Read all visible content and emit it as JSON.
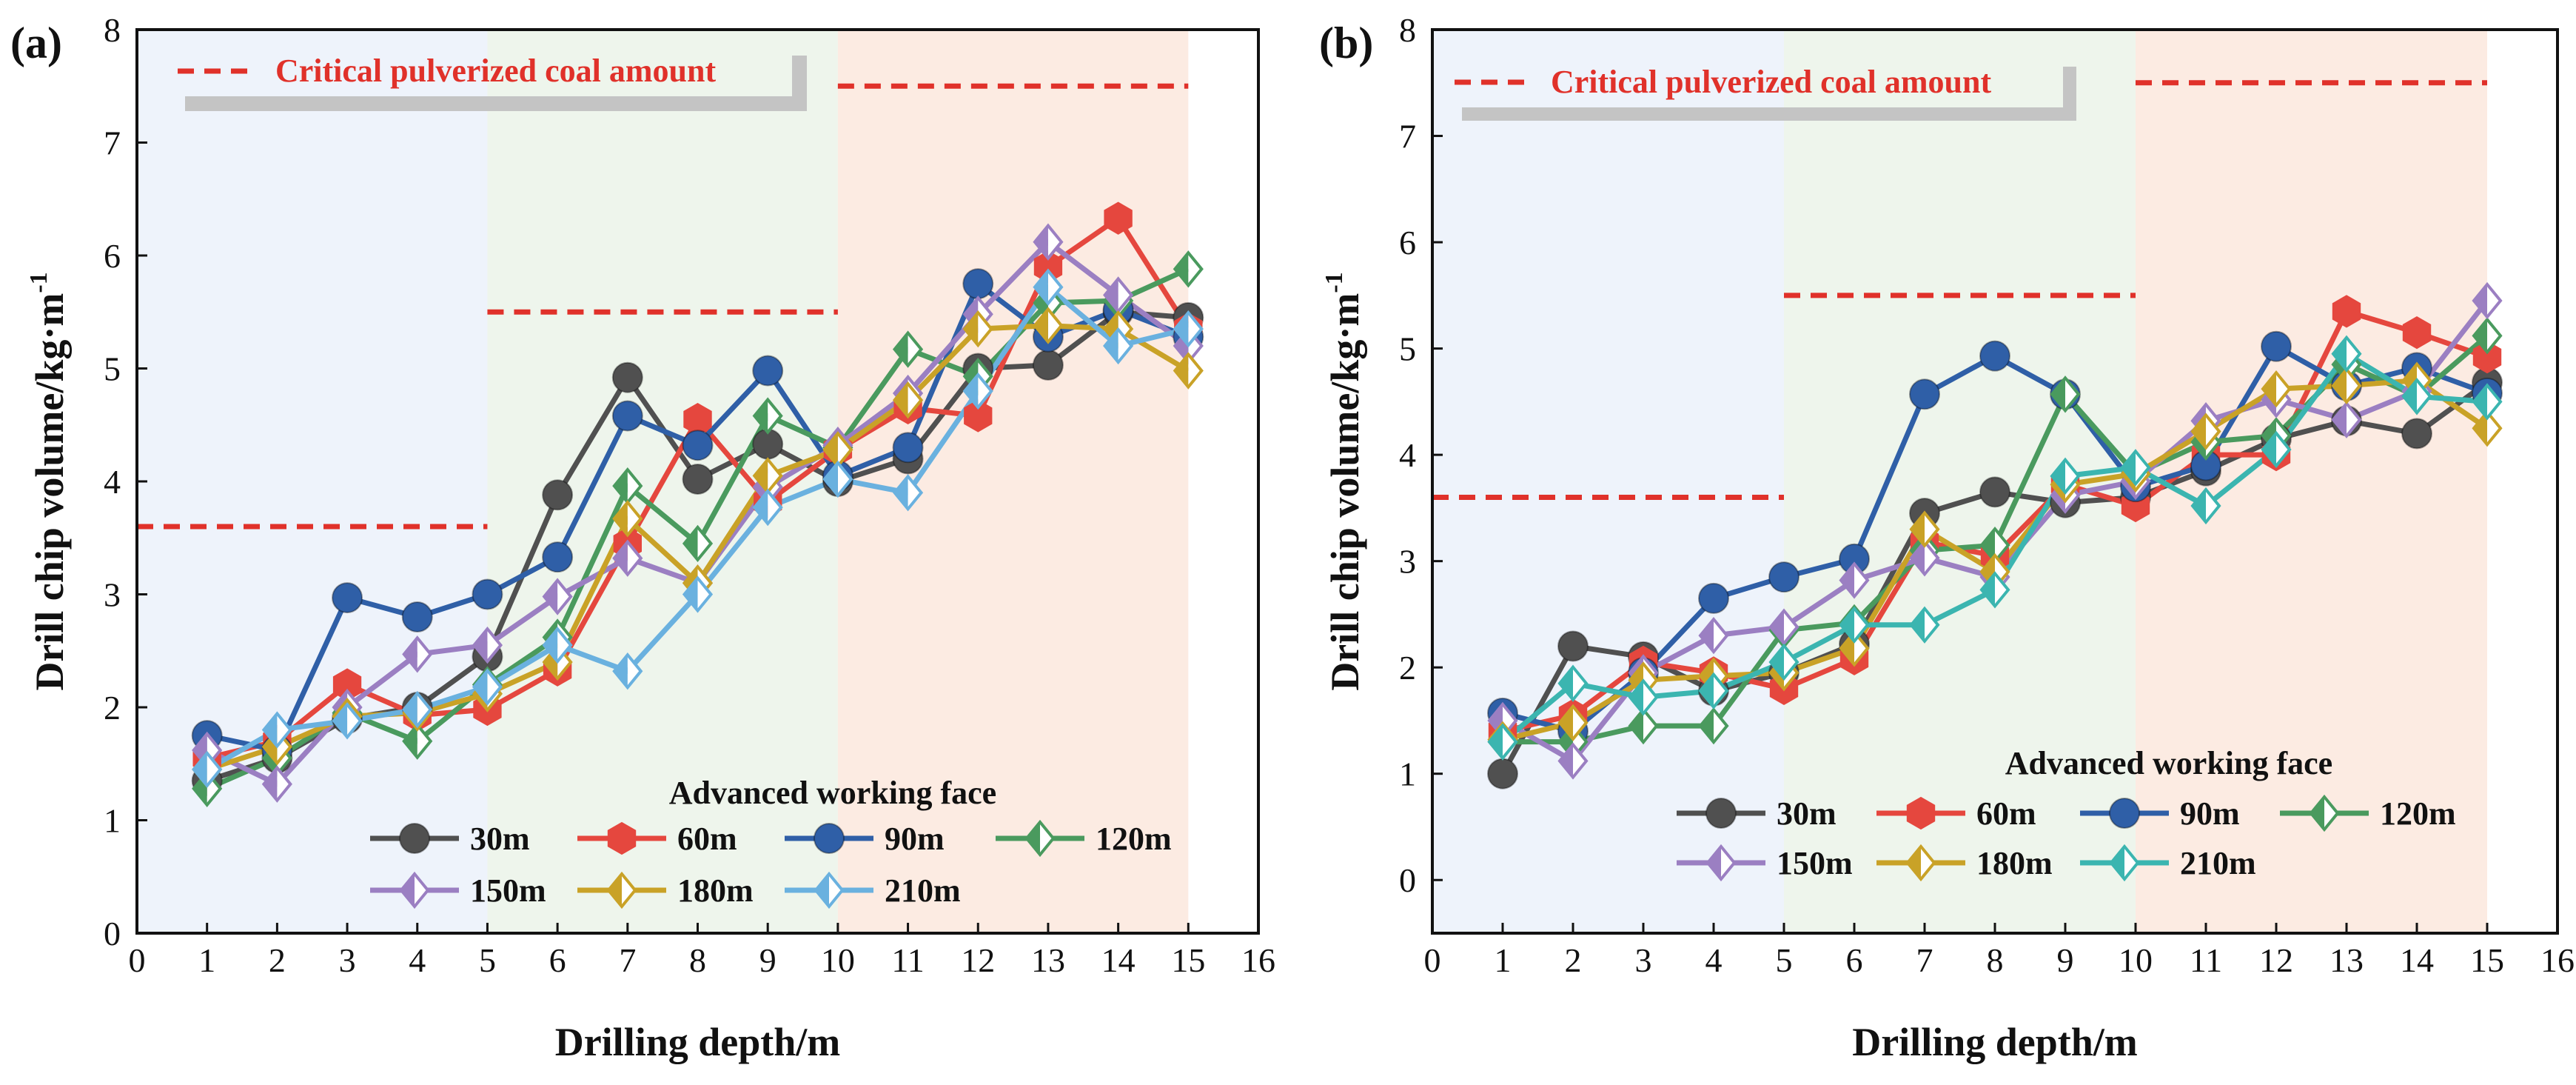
{
  "figure": {
    "panels": [
      {
        "label": "(a)"
      },
      {
        "label": "(b)"
      }
    ]
  },
  "chart_data": [
    {
      "type": "line",
      "panel": "(a)",
      "title": "",
      "xlabel": "Drilling depth/m",
      "ylabel_main": "Drill chip volume/kg·m",
      "ylabel_sup": "-1",
      "xlim": [
        0,
        16
      ],
      "ylim": [
        0,
        8
      ],
      "xticks": [
        "0",
        "1",
        "2",
        "3",
        "4",
        "5",
        "6",
        "7",
        "8",
        "9",
        "10",
        "11",
        "12",
        "13",
        "14",
        "15",
        "16"
      ],
      "yticks": [
        "0",
        "1",
        "2",
        "3",
        "4",
        "5",
        "6",
        "7",
        "8"
      ],
      "regions": [
        {
          "x0": 0,
          "x1": 5,
          "color": "#eef3fb"
        },
        {
          "x0": 5,
          "x1": 10,
          "color": "#eef5ec"
        },
        {
          "x0": 10,
          "x1": 15,
          "color": "#fcebe2"
        }
      ],
      "critical_lines": [
        {
          "x0": 0,
          "x1": 5,
          "y": 3.6
        },
        {
          "x0": 5,
          "x1": 10,
          "y": 5.5
        },
        {
          "x0": 10,
          "x1": 15,
          "y": 7.5
        }
      ],
      "critical_label": "Critical pulverized coal amount",
      "legend_title": "Advanced working face",
      "x": [
        1,
        2,
        3,
        4,
        5,
        6,
        7,
        8,
        9,
        10,
        11,
        12,
        13,
        14,
        15
      ],
      "series": [
        {
          "name": "30m",
          "color": "#505050",
          "marker": "circle",
          "values": [
            1.35,
            1.55,
            1.9,
            2.0,
            2.45,
            3.88,
            4.92,
            4.02,
            4.33,
            4.0,
            4.2,
            5.0,
            5.03,
            5.5,
            5.45
          ]
        },
        {
          "name": "60m",
          "color": "#e5473e",
          "marker": "hexagon",
          "values": [
            1.55,
            1.7,
            2.2,
            1.93,
            1.98,
            2.33,
            3.45,
            4.55,
            3.82,
            4.28,
            4.65,
            4.58,
            5.9,
            6.33,
            5.35
          ]
        },
        {
          "name": "90m",
          "color": "#2f5fa7",
          "marker": "circle",
          "values": [
            1.75,
            1.62,
            2.97,
            2.8,
            3.0,
            3.33,
            4.58,
            4.32,
            4.98,
            4.05,
            4.3,
            5.75,
            5.28,
            5.52,
            5.28
          ]
        },
        {
          "name": "120m",
          "color": "#4a9a5e",
          "marker": "diamond-split",
          "values": [
            1.28,
            1.55,
            1.95,
            1.7,
            2.2,
            2.62,
            3.96,
            3.45,
            4.58,
            4.3,
            5.17,
            4.93,
            5.58,
            5.6,
            5.88
          ]
        },
        {
          "name": "150m",
          "color": "#9b7fc2",
          "marker": "diamond-split",
          "values": [
            1.62,
            1.32,
            2.0,
            2.47,
            2.55,
            2.98,
            3.32,
            3.1,
            3.95,
            4.32,
            4.78,
            5.48,
            6.12,
            5.65,
            5.2
          ]
        },
        {
          "name": "180m",
          "color": "#c9a227",
          "marker": "diamond-split",
          "values": [
            1.45,
            1.65,
            1.92,
            1.95,
            2.12,
            2.4,
            3.67,
            3.1,
            4.05,
            4.28,
            4.72,
            5.35,
            5.38,
            5.35,
            4.98
          ]
        },
        {
          "name": "210m",
          "color": "#6ab1df",
          "marker": "diamond-split",
          "values": [
            1.45,
            1.8,
            1.88,
            1.98,
            2.18,
            2.55,
            2.32,
            3.0,
            3.77,
            4.02,
            3.9,
            4.8,
            5.72,
            5.2,
            5.35
          ]
        }
      ]
    },
    {
      "type": "line",
      "panel": "(b)",
      "title": "",
      "xlabel": "Drilling depth/m",
      "ylabel_main": "Drill chip volume/kg·m",
      "ylabel_sup": "-1",
      "xlim": [
        0,
        16
      ],
      "ylim": [
        -0.5,
        8
      ],
      "xticks": [
        "0",
        "1",
        "2",
        "3",
        "4",
        "5",
        "6",
        "7",
        "8",
        "9",
        "10",
        "11",
        "12",
        "13",
        "14",
        "15",
        "16"
      ],
      "yticks": [
        "0",
        "1",
        "2",
        "3",
        "4",
        "5",
        "6",
        "7",
        "8"
      ],
      "regions": [
        {
          "x0": 0,
          "x1": 5,
          "color": "#eef3fb"
        },
        {
          "x0": 5,
          "x1": 10,
          "color": "#eef5ec"
        },
        {
          "x0": 10,
          "x1": 15,
          "color": "#fcebe2"
        }
      ],
      "critical_lines": [
        {
          "x0": 0,
          "x1": 5,
          "y": 3.6
        },
        {
          "x0": 5,
          "x1": 10,
          "y": 5.5
        },
        {
          "x0": 10,
          "x1": 15,
          "y": 7.5
        }
      ],
      "critical_label": "Critical pulverized coal amount",
      "legend_title": "Advanced working face",
      "x": [
        1,
        2,
        3,
        4,
        5,
        6,
        7,
        8,
        9,
        10,
        11,
        12,
        13,
        14,
        15
      ],
      "series": [
        {
          "name": "30m",
          "color": "#505050",
          "marker": "circle",
          "values": [
            1.0,
            2.2,
            2.1,
            1.78,
            1.95,
            2.22,
            3.45,
            3.65,
            3.55,
            3.6,
            3.85,
            4.15,
            4.32,
            4.2,
            4.68
          ]
        },
        {
          "name": "60m",
          "color": "#e5473e",
          "marker": "hexagon",
          "values": [
            1.4,
            1.55,
            2.05,
            1.95,
            1.8,
            2.08,
            3.18,
            3.05,
            3.72,
            3.52,
            4.0,
            4.0,
            5.35,
            5.15,
            4.92
          ]
        },
        {
          "name": "90m",
          "color": "#2f5fa7",
          "marker": "circle",
          "values": [
            1.57,
            1.4,
            1.95,
            2.65,
            2.85,
            3.02,
            4.57,
            4.93,
            4.57,
            3.7,
            3.9,
            5.02,
            4.65,
            4.82,
            4.58
          ]
        },
        {
          "name": "120m",
          "color": "#4a9a5e",
          "marker": "diamond-split",
          "values": [
            1.3,
            1.3,
            1.45,
            1.45,
            2.35,
            2.42,
            3.1,
            3.15,
            4.57,
            3.82,
            4.12,
            4.18,
            4.85,
            4.55,
            5.12
          ]
        },
        {
          "name": "150m",
          "color": "#9b7fc2",
          "marker": "diamond-split",
          "values": [
            1.5,
            1.12,
            1.95,
            2.3,
            2.38,
            2.82,
            3.03,
            2.85,
            3.62,
            3.75,
            4.32,
            4.52,
            4.33,
            4.6,
            5.45
          ]
        },
        {
          "name": "180m",
          "color": "#c9a227",
          "marker": "diamond-split",
          "values": [
            1.32,
            1.48,
            1.88,
            1.92,
            1.95,
            2.18,
            3.3,
            2.9,
            3.72,
            3.82,
            4.22,
            4.62,
            4.65,
            4.7,
            4.25
          ]
        },
        {
          "name": "210m",
          "color": "#3bb5b0",
          "marker": "diamond-split",
          "values": [
            1.3,
            1.85,
            1.72,
            1.78,
            2.05,
            2.4,
            2.4,
            2.73,
            3.8,
            3.88,
            3.52,
            4.05,
            4.95,
            4.55,
            4.5
          ]
        }
      ]
    }
  ]
}
